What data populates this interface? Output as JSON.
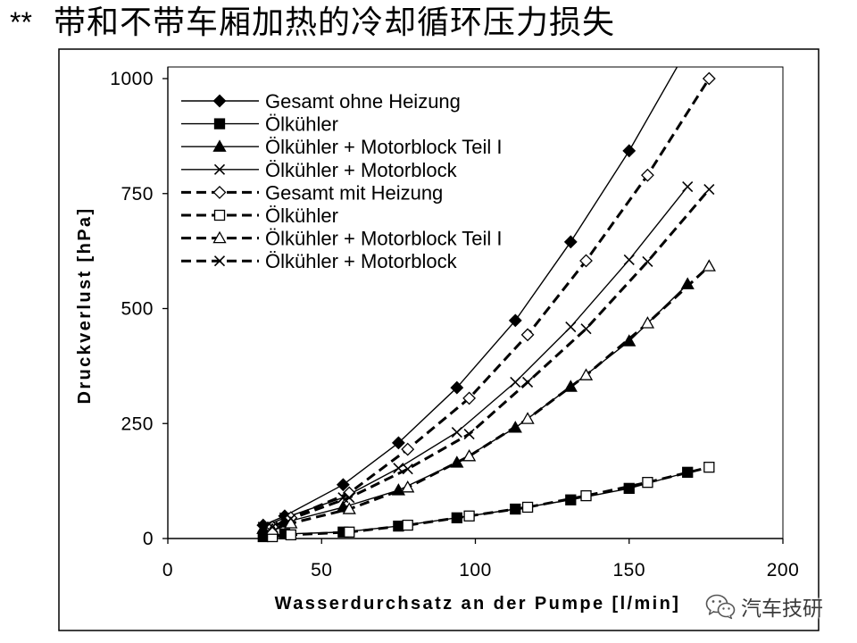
{
  "title": {
    "prefix": "**",
    "text": "带和不带车厢加热的冷却循环压力损失"
  },
  "watermark": {
    "icon": "wechat-icon",
    "text": "汽车技研"
  },
  "chart_data": {
    "type": "line",
    "xlabel": "Wasserdurchsatz an der Pumpe [l/min]",
    "ylabel": "Druckverlust [hPa]",
    "xlim": [
      0,
      200
    ],
    "ylim": [
      0,
      1000
    ],
    "xticks": [
      0,
      50,
      100,
      150,
      200
    ],
    "yticks": [
      0,
      250,
      500,
      750,
      1000
    ],
    "grid": false,
    "legend_position": "top-left",
    "colors": {
      "series": "#000000",
      "background": "#ffffff"
    },
    "series": [
      {
        "name": "Gesamt ohne Heizung",
        "x": [
          31,
          38,
          57,
          75,
          94,
          113,
          131,
          150,
          169
        ],
        "y": [
          29,
          49,
          117,
          208,
          328,
          474,
          645,
          843,
          1065
        ]
      },
      {
        "name": "Ölkühler",
        "x": [
          31,
          38,
          57,
          75,
          94,
          113,
          131,
          150,
          169
        ],
        "y": [
          4,
          10,
          14,
          27,
          45,
          64,
          84,
          109,
          144
        ]
      },
      {
        "name": "Ölkühler + Motorblock Teil I",
        "x": [
          31,
          38,
          57,
          75,
          94,
          113,
          131,
          150,
          169
        ],
        "y": [
          21,
          35,
          68,
          105,
          165,
          241,
          330,
          429,
          553
        ]
      },
      {
        "name": "Ölkühler + Motorblock",
        "x": [
          31,
          38,
          57,
          75,
          94,
          113,
          131,
          150,
          169
        ],
        "y": [
          25,
          45,
          89,
          153,
          231,
          340,
          460,
          606,
          765
        ]
      },
      {
        "name": "Gesamt mit Heizung",
        "x": [
          34,
          40,
          59,
          78,
          98,
          117,
          136,
          156,
          176
        ],
        "y": [
          25,
          45,
          99,
          194,
          305,
          443,
          604,
          790,
          1000
        ]
      },
      {
        "name": "Ölkühler",
        "x": [
          34,
          40,
          59,
          78,
          98,
          117,
          136,
          156,
          176
        ],
        "y": [
          4,
          8,
          14,
          29,
          49,
          68,
          93,
          122,
          155
        ]
      },
      {
        "name": "Ölkühler + Motorblock Teil I",
        "x": [
          34,
          40,
          59,
          78,
          98,
          117,
          136,
          156,
          176
        ],
        "y": [
          19,
          33,
          64,
          111,
          179,
          260,
          355,
          468,
          592
        ]
      },
      {
        "name": "Ölkühler + Motorblock",
        "x": [
          34,
          40,
          59,
          78,
          98,
          117,
          136,
          156,
          176
        ],
        "y": [
          25,
          43,
          89,
          151,
          227,
          340,
          456,
          602,
          759
        ]
      }
    ]
  }
}
